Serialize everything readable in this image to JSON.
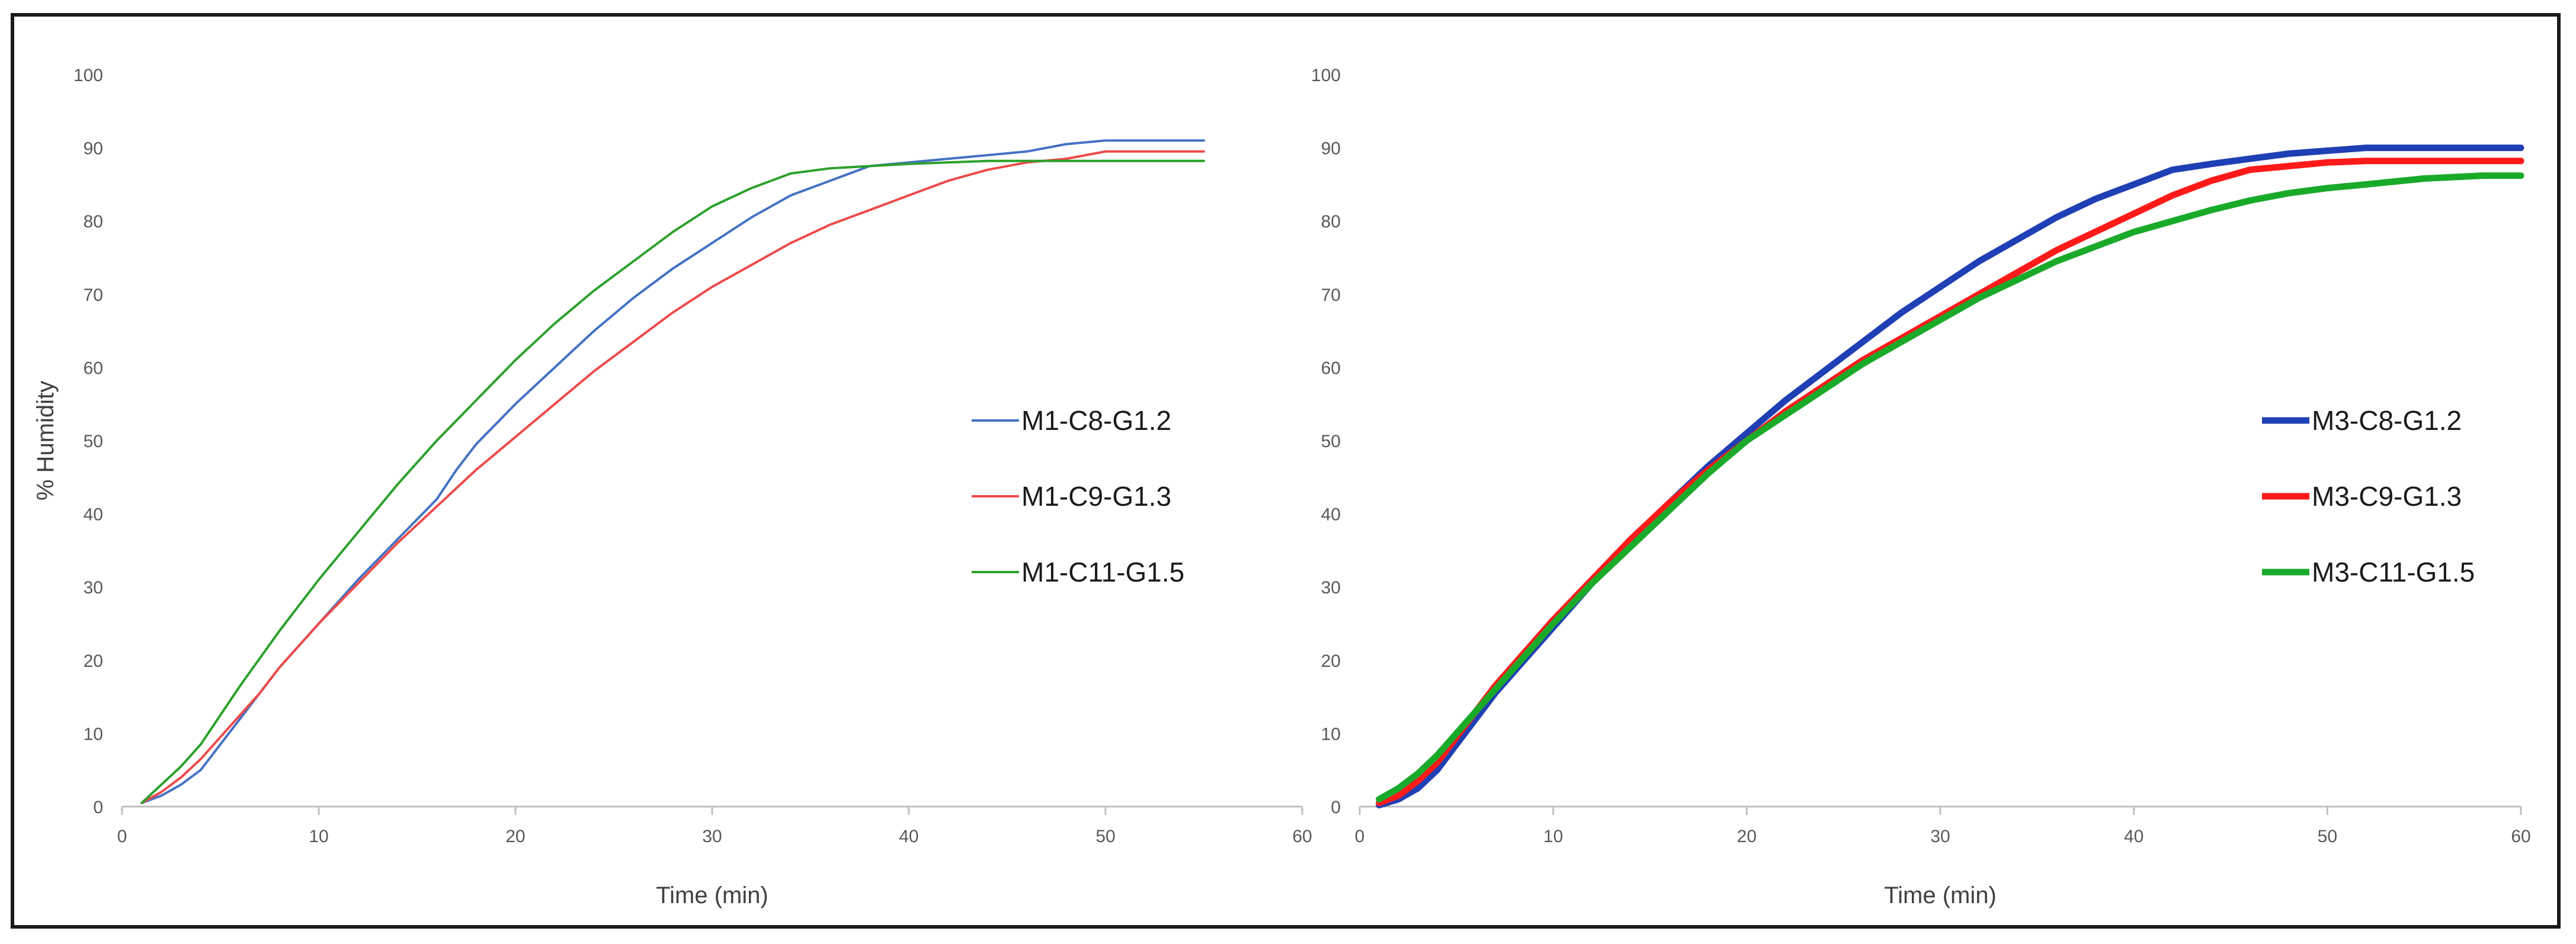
{
  "chart_data": [
    {
      "type": "line",
      "title": "",
      "xlabel": "Time (min)",
      "ylabel": "% Humidity",
      "xlim": [
        0,
        60
      ],
      "ylim": [
        0,
        100
      ],
      "xticks": [
        "0",
        "10",
        "20",
        "30",
        "40",
        "50",
        "60"
      ],
      "yticks": [
        "0",
        "10",
        "20",
        "30",
        "40",
        "50",
        "60",
        "70",
        "80",
        "90",
        "100"
      ],
      "grid": false,
      "legend_position": "right",
      "series": [
        {
          "name": "M1-C8-G1.2",
          "color": "#4472c4",
          "x": [
            1,
            2,
            3,
            4,
            5,
            6,
            7,
            8,
            10,
            12,
            14,
            16,
            17,
            18,
            20,
            22,
            24,
            26,
            28,
            30,
            32,
            34,
            36,
            38,
            40,
            42,
            44,
            46,
            48,
            50,
            55
          ],
          "y": [
            0.5,
            1.5,
            3,
            5,
            8.5,
            12,
            15.5,
            19,
            25,
            31,
            36.5,
            42,
            46,
            49.5,
            55,
            60,
            65,
            69.5,
            73.5,
            77,
            80.5,
            83.5,
            85.5,
            87.5,
            88,
            88.5,
            89,
            89.5,
            90.5,
            91,
            91
          ]
        },
        {
          "name": "M1-C9-G1.3",
          "color": "#ed4a4a",
          "x": [
            1,
            2,
            3,
            4,
            5,
            6,
            7,
            8,
            10,
            12,
            14,
            16,
            18,
            20,
            22,
            24,
            26,
            28,
            30,
            32,
            34,
            36,
            38,
            40,
            42,
            44,
            46,
            48,
            50,
            55
          ],
          "y": [
            0.5,
            2,
            4,
            6.5,
            9.5,
            12.5,
            15.5,
            19,
            25,
            30.5,
            36,
            41,
            46,
            50.5,
            55,
            59.5,
            63.5,
            67.5,
            71,
            74,
            77,
            79.5,
            81.5,
            83.5,
            85.5,
            87,
            88,
            88.5,
            89.5,
            89.5
          ]
        },
        {
          "name": "M1-C11-G1.5",
          "color": "#2ca02c",
          "x": [
            1,
            2,
            3,
            4,
            5,
            6,
            8,
            10,
            12,
            14,
            16,
            18,
            20,
            22,
            24,
            26,
            28,
            30,
            32,
            34,
            36,
            38,
            40,
            42,
            44,
            46,
            48,
            50,
            55
          ],
          "y": [
            0.5,
            3,
            5.5,
            8.5,
            12.5,
            16.5,
            24,
            31,
            37.5,
            44,
            50,
            55.5,
            61,
            66,
            70.5,
            74.5,
            78.5,
            82,
            84.5,
            86.5,
            87.2,
            87.5,
            87.8,
            88,
            88.2,
            88.2,
            88.2,
            88.2,
            88.2
          ]
        }
      ]
    },
    {
      "type": "line",
      "title": "",
      "xlabel": "Time (min)",
      "ylabel": "",
      "xlim": [
        0,
        60
      ],
      "ylim": [
        0,
        100
      ],
      "xticks": [
        "0",
        "10",
        "20",
        "30",
        "40",
        "50",
        "60"
      ],
      "yticks": [
        "0",
        "10",
        "20",
        "30",
        "40",
        "50",
        "60",
        "70",
        "80",
        "90",
        "100"
      ],
      "grid": false,
      "legend_position": "right",
      "series": [
        {
          "name": "M3-C8-G1.2",
          "color": "#1f3fb4",
          "x": [
            1,
            2,
            3,
            4,
            5,
            6,
            7,
            8,
            10,
            12,
            14,
            16,
            18,
            20,
            22,
            24,
            26,
            28,
            30,
            32,
            34,
            36,
            38,
            40,
            42,
            44,
            46,
            48,
            50,
            52,
            55,
            60
          ],
          "y": [
            0.2,
            1,
            2.5,
            5,
            8.5,
            12,
            15.5,
            18.5,
            24.5,
            30.5,
            36,
            41.5,
            46.5,
            51,
            55.5,
            59.5,
            63.5,
            67.5,
            71,
            74.5,
            77.5,
            80.5,
            83,
            85,
            87,
            87.8,
            88.5,
            89.2,
            89.6,
            90,
            90,
            90
          ]
        },
        {
          "name": "M3-C9-G1.3",
          "color": "#ff1a1a",
          "x": [
            1,
            2,
            3,
            4,
            5,
            6,
            7,
            8,
            10,
            12,
            14,
            16,
            18,
            20,
            22,
            24,
            26,
            28,
            30,
            32,
            34,
            36,
            38,
            40,
            42,
            44,
            46,
            48,
            50,
            52,
            55,
            60
          ],
          "y": [
            0.5,
            1.5,
            3.5,
            6,
            9.5,
            13,
            16.5,
            19.5,
            25.5,
            31,
            36.5,
            41.5,
            46,
            50,
            54,
            57.5,
            61,
            64,
            67,
            70,
            73,
            76,
            78.5,
            81,
            83.5,
            85.5,
            87,
            87.5,
            88,
            88.2,
            88.2,
            88.2
          ]
        },
        {
          "name": "M3-C11-G1.5",
          "color": "#1aaa2a",
          "x": [
            1,
            2,
            3,
            4,
            5,
            6,
            7,
            8,
            10,
            12,
            14,
            16,
            18,
            20,
            22,
            24,
            26,
            28,
            30,
            32,
            34,
            36,
            38,
            40,
            42,
            44,
            46,
            48,
            50,
            52,
            55,
            58,
            60
          ],
          "y": [
            1,
            2.5,
            4.5,
            7,
            10,
            13,
            16,
            19,
            25,
            30.5,
            35.5,
            40.5,
            45.5,
            50,
            53.5,
            57,
            60.5,
            63.5,
            66.5,
            69.5,
            72,
            74.5,
            76.5,
            78.5,
            80,
            81.5,
            82.8,
            83.8,
            84.5,
            85,
            85.8,
            86.2,
            86.2
          ]
        }
      ]
    }
  ]
}
